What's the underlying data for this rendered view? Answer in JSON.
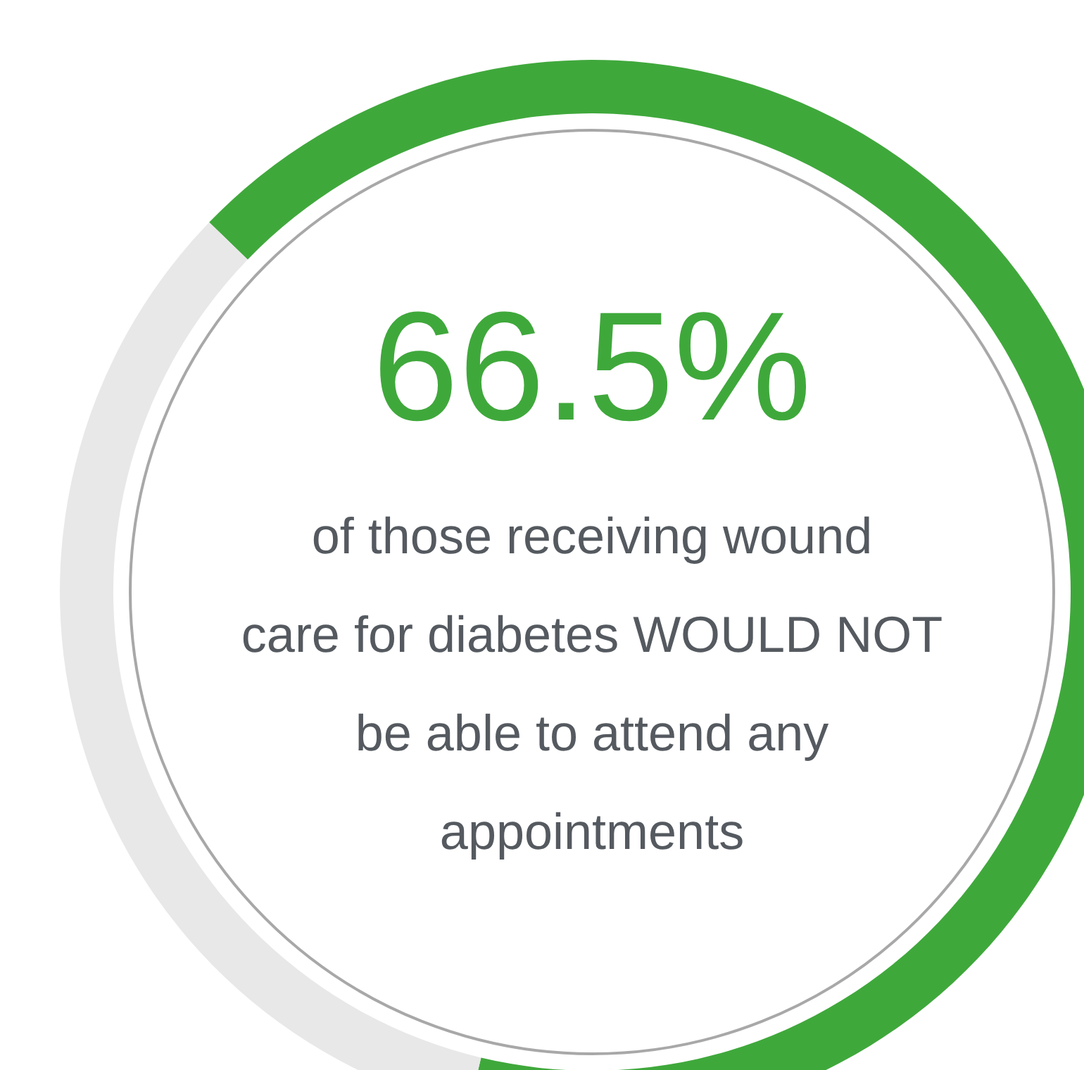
{
  "chart_data": {
    "type": "donut",
    "categories": [
      null,
      null
    ],
    "values": [
      66.5,
      33.5
    ],
    "colors": [
      "#3fa83b",
      "#e8e8e8"
    ],
    "value_labels": [
      "66.5%",
      null
    ],
    "annotations": [
      "of those receiving wound care for diabetes WOULD NOT be able to attend any appointments"
    ]
  }
}
